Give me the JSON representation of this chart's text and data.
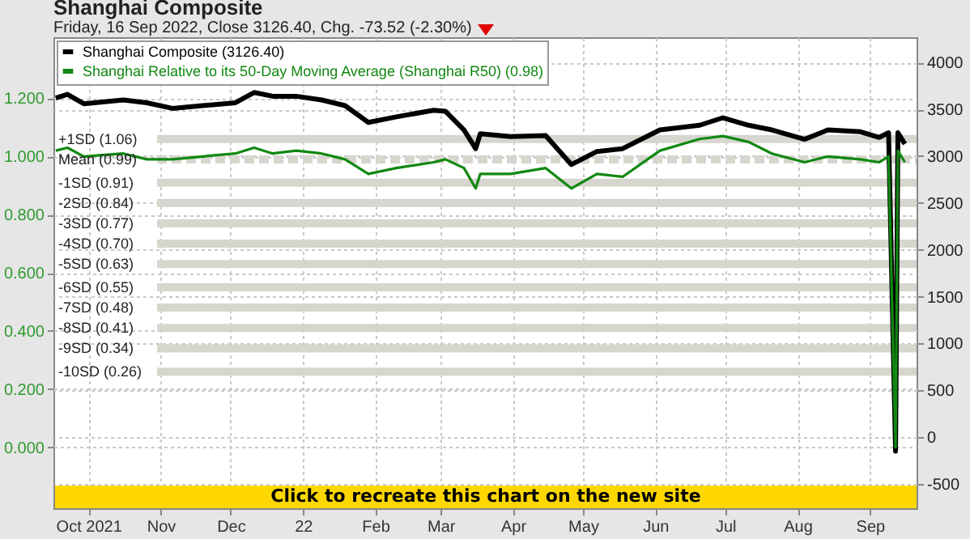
{
  "chart_data": {
    "type": "line",
    "title": "Shanghai Composite",
    "subtitle": "Friday, 16 Sep 2022, Close 3126.40, Chg. -73.52 (-2.30%)",
    "annotations": [
      "Click to recreate this chart on the new site"
    ],
    "x": [
      "2021-09-17",
      "2021-09-22",
      "2021-09-29",
      "2021-10-16",
      "2021-10-26",
      "2021-11-06",
      "2021-11-19",
      "2021-12-03",
      "2021-12-11",
      "2021-12-19",
      "2021-12-29",
      "2022-01-09",
      "2022-01-19",
      "2022-01-29",
      "2022-02-10",
      "2022-02-26",
      "2022-03-03",
      "2022-03-11",
      "2022-03-16",
      "2022-03-18",
      "2022-03-31",
      "2022-04-15",
      "2022-04-26",
      "2022-05-07",
      "2022-05-18",
      "2022-06-03",
      "2022-06-20",
      "2022-06-30",
      "2022-07-11",
      "2022-07-21",
      "2022-08-04",
      "2022-08-14",
      "2022-08-28",
      "2022-09-05",
      "2022-09-09",
      "2022-09-12",
      "2022-09-13",
      "2022-09-16"
    ],
    "series": [
      {
        "name": "Shanghai Composite (3126.40)",
        "color": "#000000",
        "axis": "y2",
        "values": [
          3620,
          3660,
          3560,
          3600,
          3570,
          3510,
          3540,
          3570,
          3680,
          3640,
          3640,
          3600,
          3540,
          3360,
          3420,
          3490,
          3480,
          3280,
          3080,
          3240,
          3210,
          3220,
          2910,
          3050,
          3080,
          3280,
          3330,
          3410,
          3330,
          3280,
          3180,
          3280,
          3260,
          3200,
          3250,
          -150,
          3250,
          3130
        ]
      },
      {
        "name": "Shanghai Relative to its 50-Day Moving Average (Shanghai R50) (0.98)",
        "color": "#118811",
        "values": [
          1.02,
          1.03,
          1.0,
          1.01,
          0.99,
          0.99,
          1.0,
          1.01,
          1.03,
          1.01,
          1.02,
          1.01,
          0.99,
          0.94,
          0.96,
          0.98,
          0.99,
          0.96,
          0.89,
          0.94,
          0.94,
          0.96,
          0.89,
          0.94,
          0.93,
          1.02,
          1.06,
          1.07,
          1.05,
          1.01,
          0.98,
          1.0,
          0.99,
          0.98,
          1.0,
          0.0,
          1.02,
          0.98
        ]
      }
    ],
    "xlim": [
      "2021-09-16",
      "2022-09-21"
    ],
    "xticks": [
      {
        "value": "2021-10-01",
        "label": "Oct 2021"
      },
      {
        "value": "2021-11-01",
        "label": "Nov"
      },
      {
        "value": "2021-12-01",
        "label": "Dec"
      },
      {
        "value": "2022-01-01",
        "label": "22"
      },
      {
        "value": "2022-02-01",
        "label": "Feb"
      },
      {
        "value": "2022-03-01",
        "label": "Mar"
      },
      {
        "value": "2022-04-01",
        "label": "Apr"
      },
      {
        "value": "2022-05-01",
        "label": "May"
      },
      {
        "value": "2022-06-01",
        "label": "Jun"
      },
      {
        "value": "2022-07-01",
        "label": "Jul"
      },
      {
        "value": "2022-08-01",
        "label": "Aug"
      },
      {
        "value": "2022-09-01",
        "label": "Sep"
      }
    ],
    "ylim": [
      -0.21,
      1.41
    ],
    "yticks": [
      {
        "value": 0,
        "label": "0.000"
      },
      {
        "value": 0.2,
        "label": "0.200"
      },
      {
        "value": 0.4,
        "label": "0.400"
      },
      {
        "value": 0.6,
        "label": "0.600"
      },
      {
        "value": 0.8,
        "label": "0.800"
      },
      {
        "value": 1.0,
        "label": "1.000"
      },
      {
        "value": 1.2,
        "label": "1.200"
      }
    ],
    "y2lim": [
      -760,
      4270
    ],
    "y2ticks": [
      -500,
      0,
      500,
      1000,
      1500,
      2000,
      2500,
      3000,
      3500,
      4000
    ],
    "ref_lines": [
      {
        "axis": "y",
        "value": 1.06,
        "label": "+1SD (1.06)",
        "color": "#d6d6ce"
      },
      {
        "axis": "y",
        "value": 0.99,
        "label": "Mean (0.99)",
        "color": "#d6d6ce",
        "line_style": "dashed"
      },
      {
        "axis": "y",
        "value": 0.91,
        "label": "-1SD (0.91)",
        "color": "#d6d6ce"
      },
      {
        "axis": "y",
        "value": 0.84,
        "label": "-2SD (0.84)",
        "color": "#d6d6ce"
      },
      {
        "axis": "y",
        "value": 0.77,
        "label": "-3SD (0.77)",
        "color": "#d6d6ce"
      },
      {
        "axis": "y",
        "value": 0.7,
        "label": "-4SD (0.70)",
        "color": "#d6d6ce"
      },
      {
        "axis": "y",
        "value": 0.63,
        "label": "-5SD (0.63)",
        "color": "#d6d6ce"
      },
      {
        "axis": "y",
        "value": 0.55,
        "label": "-6SD (0.55)",
        "color": "#d6d6ce"
      },
      {
        "axis": "y",
        "value": 0.48,
        "label": "-7SD (0.48)",
        "color": "#d6d6ce"
      },
      {
        "axis": "y",
        "value": 0.41,
        "label": "-8SD (0.41)",
        "color": "#d6d6ce"
      },
      {
        "axis": "y",
        "value": 0.34,
        "label": "-9SD (0.34)",
        "color": "#d6d6ce"
      },
      {
        "axis": "y",
        "value": 0.26,
        "label": "-10SD (0.26)",
        "color": "#d6d6ce"
      }
    ],
    "grid": true,
    "legend": "top left"
  }
}
